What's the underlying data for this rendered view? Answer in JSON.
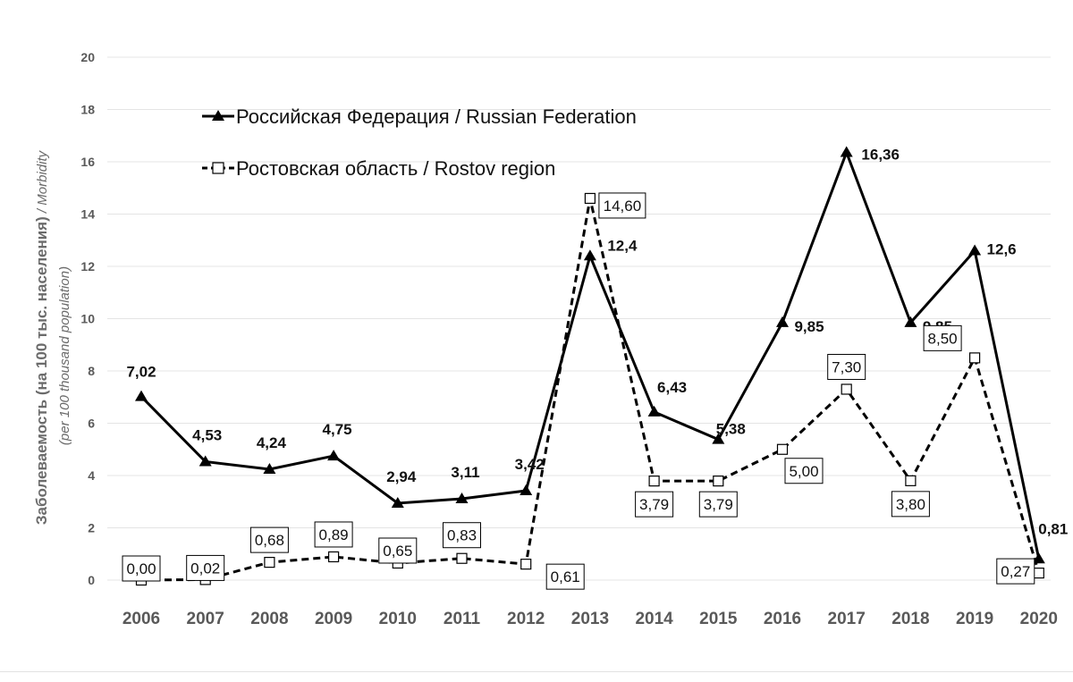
{
  "chart_data": {
    "type": "line",
    "title": "",
    "ylabel_main": "Заболеваемость (на 100 тыс. населения)",
    "ylabel_sep": " / ",
    "ylabel_en_1": "Morbidity",
    "ylabel_en_2": "(per 100 thousand population)",
    "xlabel": "",
    "ylim": [
      0,
      20
    ],
    "yticks": [
      0,
      2,
      4,
      6,
      8,
      10,
      12,
      14,
      16,
      18,
      20
    ],
    "grid": true,
    "legend_position": "top-left",
    "categories": [
      "2006",
      "2007",
      "2008",
      "2009",
      "2010",
      "2011",
      "2012",
      "2013",
      "2014",
      "2015",
      "2016",
      "2017",
      "2018",
      "2019",
      "2020"
    ],
    "series": [
      {
        "name": "Российская Федерация / Russian Federation",
        "marker": "filled-triangle",
        "line": "solid",
        "color": "#000000",
        "values": [
          7.02,
          4.53,
          4.24,
          4.75,
          2.94,
          3.11,
          3.42,
          12.4,
          6.43,
          5.38,
          9.85,
          16.36,
          9.85,
          12.6,
          0.81
        ],
        "labels": [
          "7,02",
          "4,53",
          "4,24",
          "4,75",
          "2,94",
          "3,11",
          "3,42",
          "12,4",
          "6,43",
          "5,38",
          "9,85",
          "16,36",
          "9,85",
          "12,6",
          "0,81"
        ]
      },
      {
        "name": "Ростовская область / Rostov region",
        "marker": "hollow-square",
        "line": "dashed",
        "color": "#000000",
        "values": [
          0.0,
          0.02,
          0.68,
          0.89,
          0.65,
          0.83,
          0.61,
          14.6,
          3.79,
          3.79,
          5.0,
          7.3,
          3.8,
          8.5,
          0.27
        ],
        "labels": [
          "0,00",
          "0,02",
          "0,68",
          "0,89",
          "0,65",
          "0,83",
          "0,61",
          "14,60",
          "3,79",
          "3,79",
          "5,00",
          "7,30",
          "3,80",
          "8,50",
          "0,27"
        ]
      }
    ]
  }
}
